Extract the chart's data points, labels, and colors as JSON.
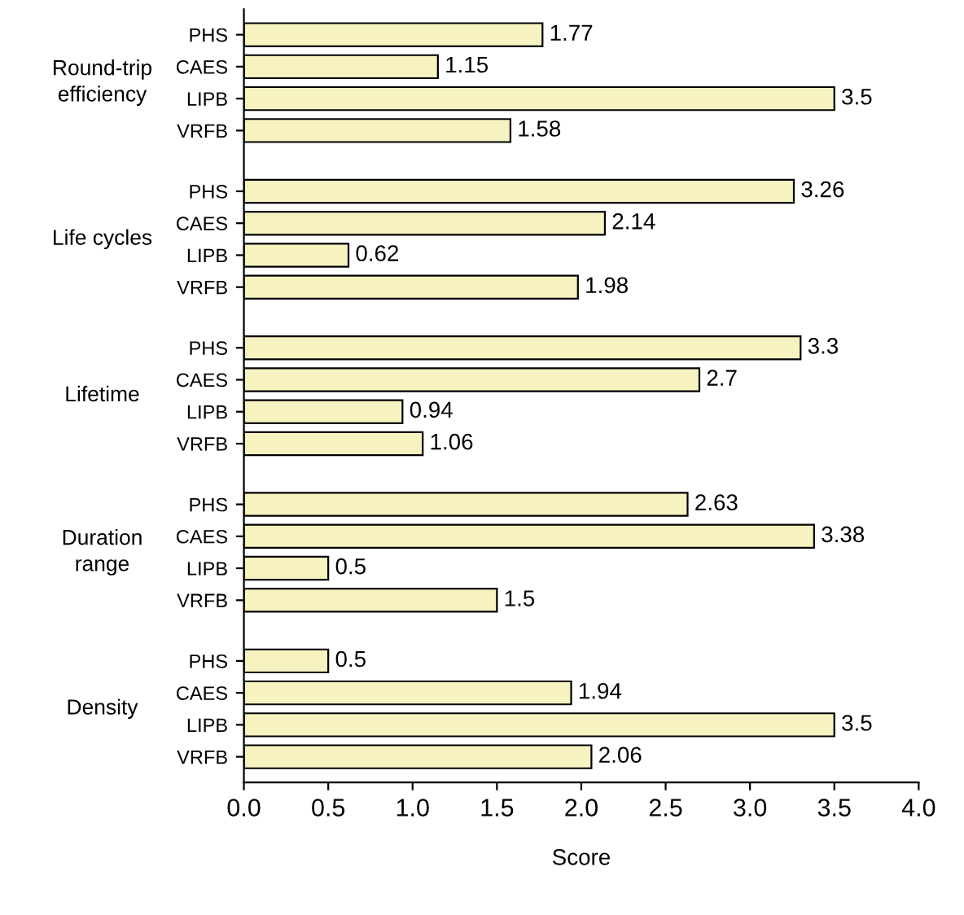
{
  "chart_data": {
    "type": "bar",
    "orientation": "horizontal",
    "xlabel": "Score",
    "categories": [
      "PHS",
      "CAES",
      "LIPB",
      "VRFB",
      "PHS",
      "CAES",
      "LIPB",
      "VRFB",
      "PHS",
      "CAES",
      "LIPB",
      "VRFB",
      "PHS",
      "CAES",
      "LIPB",
      "VRFB",
      "PHS",
      "CAES",
      "LIPB",
      "VRFB"
    ],
    "values": [
      1.77,
      1.15,
      3.5,
      1.58,
      3.26,
      2.14,
      0.62,
      1.98,
      3.3,
      2.7,
      0.94,
      1.06,
      2.63,
      3.38,
      0.5,
      1.5,
      0.5,
      1.94,
      3.5,
      2.06
    ],
    "color": "#f7f3c0",
    "annotations": [
      "Round-trip\nefficiency",
      "Life cycles",
      "Lifetime",
      "Duration\nrange",
      "Density"
    ],
    "xlim": [
      0,
      4
    ],
    "xticks": [
      {
        "value": 0,
        "label": "0.0"
      },
      {
        "value": 0.5,
        "label": "0.5"
      },
      {
        "value": 1,
        "label": "1.0"
      },
      {
        "value": 1.5,
        "label": "1.5"
      },
      {
        "value": 2,
        "label": "2.0"
      },
      {
        "value": 2.5,
        "label": "2.5"
      },
      {
        "value": 3,
        "label": "3.0"
      },
      {
        "value": 3.5,
        "label": "3.5"
      },
      {
        "value": 4,
        "label": "4.0"
      }
    ],
    "data_labels": true,
    "grid": false
  }
}
